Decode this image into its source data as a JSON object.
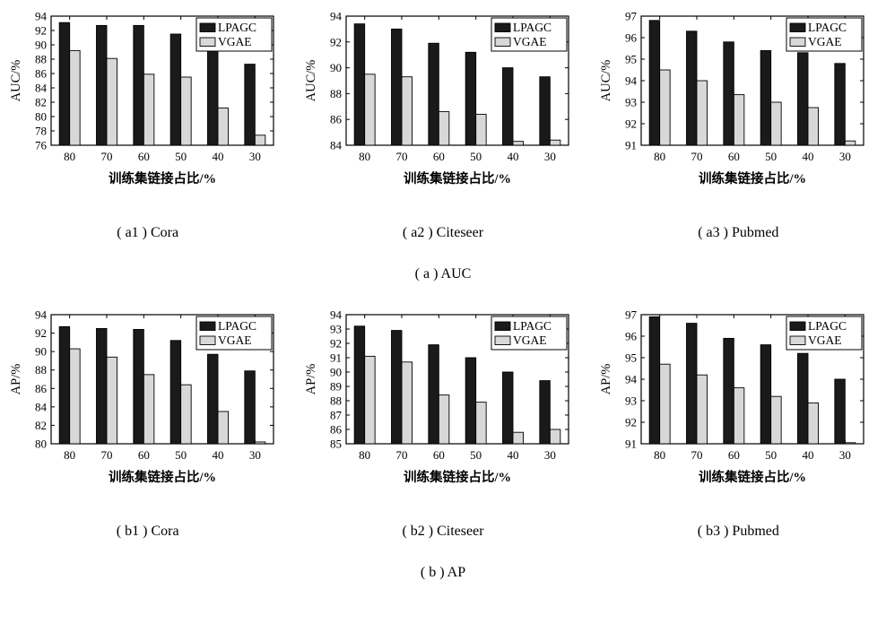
{
  "page": {
    "background": "#ffffff"
  },
  "colors": {
    "lpagc": "#1a1a1a",
    "vgae": "#d8d8d8",
    "frame": "#000000"
  },
  "captions": {
    "a1": "( a1 ) Cora",
    "a2": "( a2 ) Citeseer",
    "a3": "( a3 ) Pubmed",
    "a": "( a ) AUC",
    "b1": "( b1 ) Cora",
    "b2": "( b2 ) Citeseer",
    "b3": "( b3 ) Pubmed",
    "b": "( b ) AP"
  },
  "chart_data": [
    {
      "id": "a1-cora-auc",
      "type": "bar",
      "title": "",
      "xlabel": "训练集链接占比/%",
      "ylabel": "AUC/%",
      "categories": [
        "80",
        "70",
        "60",
        "50",
        "40",
        "30"
      ],
      "series": [
        {
          "name": "LPAGC",
          "color": "#1a1a1a",
          "values": [
            93.1,
            92.7,
            92.7,
            91.5,
            89.8,
            87.3
          ]
        },
        {
          "name": "VGAE",
          "color": "#d8d8d8",
          "values": [
            89.2,
            88.1,
            85.9,
            85.5,
            81.2,
            77.4
          ]
        }
      ],
      "ylim": [
        76,
        94
      ],
      "ytick_step": 2,
      "grid": false,
      "legend_position": "top-right"
    },
    {
      "id": "a2-citeseer-auc",
      "type": "bar",
      "title": "",
      "xlabel": "训练集链接占比/%",
      "ylabel": "AUC/%",
      "categories": [
        "80",
        "70",
        "60",
        "50",
        "40",
        "30"
      ],
      "series": [
        {
          "name": "LPAGC",
          "color": "#1a1a1a",
          "values": [
            93.4,
            93.0,
            91.9,
            91.2,
            90.0,
            89.3
          ]
        },
        {
          "name": "VGAE",
          "color": "#d8d8d8",
          "values": [
            89.5,
            89.3,
            86.6,
            86.4,
            84.3,
            84.4
          ]
        }
      ],
      "ylim": [
        84,
        94
      ],
      "ytick_step": 2,
      "grid": false,
      "legend_position": "top-right"
    },
    {
      "id": "a3-pubmed-auc",
      "type": "bar",
      "title": "",
      "xlabel": "训练集链接占比/%",
      "ylabel": "AUC/%",
      "categories": [
        "80",
        "70",
        "60",
        "50",
        "40",
        "30"
      ],
      "series": [
        {
          "name": "LPAGC",
          "color": "#1a1a1a",
          "values": [
            96.8,
            96.3,
            95.8,
            95.4,
            95.3,
            94.8
          ]
        },
        {
          "name": "VGAE",
          "color": "#d8d8d8",
          "values": [
            94.5,
            94.0,
            93.35,
            93.0,
            92.75,
            91.2
          ]
        }
      ],
      "ylim": [
        91,
        97
      ],
      "ytick_step": 1,
      "grid": false,
      "legend_position": "top-right"
    },
    {
      "id": "b1-cora-ap",
      "type": "bar",
      "title": "",
      "xlabel": "训练集链接占比/%",
      "ylabel": "AP/%",
      "categories": [
        "80",
        "70",
        "60",
        "50",
        "40",
        "30"
      ],
      "series": [
        {
          "name": "LPAGC",
          "color": "#1a1a1a",
          "values": [
            92.7,
            92.5,
            92.4,
            91.2,
            89.7,
            87.9
          ]
        },
        {
          "name": "VGAE",
          "color": "#d8d8d8",
          "values": [
            90.3,
            89.4,
            87.5,
            86.4,
            83.5,
            80.2
          ]
        }
      ],
      "ylim": [
        80,
        94
      ],
      "ytick_step": 2,
      "grid": false,
      "legend_position": "top-right"
    },
    {
      "id": "b2-citeseer-ap",
      "type": "bar",
      "title": "",
      "xlabel": "训练集链接占比/%",
      "ylabel": "AP/%",
      "categories": [
        "80",
        "70",
        "60",
        "50",
        "40",
        "30"
      ],
      "series": [
        {
          "name": "LPAGC",
          "color": "#1a1a1a",
          "values": [
            93.2,
            92.9,
            91.9,
            91.0,
            90.0,
            89.4
          ]
        },
        {
          "name": "VGAE",
          "color": "#d8d8d8",
          "values": [
            91.1,
            90.7,
            88.4,
            87.9,
            85.8,
            86.0
          ]
        }
      ],
      "ylim": [
        85,
        94
      ],
      "ytick_step": 1,
      "grid": false,
      "legend_position": "top-right"
    },
    {
      "id": "b3-pubmed-ap",
      "type": "bar",
      "title": "",
      "xlabel": "训练集链接占比/%",
      "ylabel": "AP/%",
      "categories": [
        "80",
        "70",
        "60",
        "50",
        "40",
        "30"
      ],
      "series": [
        {
          "name": "LPAGC",
          "color": "#1a1a1a",
          "values": [
            96.9,
            96.6,
            95.9,
            95.6,
            95.2,
            94.0
          ]
        },
        {
          "name": "VGAE",
          "color": "#d8d8d8",
          "values": [
            94.7,
            94.2,
            93.6,
            93.2,
            92.9,
            91.05
          ]
        }
      ],
      "ylim": [
        91,
        97
      ],
      "ytick_step": 1,
      "grid": false,
      "legend_position": "top-right"
    }
  ]
}
